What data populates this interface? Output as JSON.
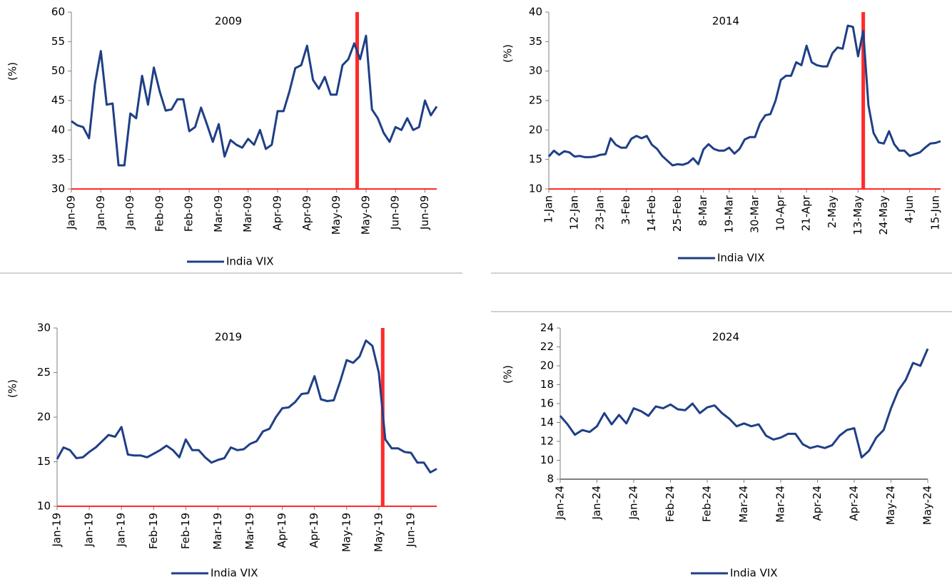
{
  "chart_data": [
    {
      "type": "line",
      "title": "2009",
      "ylabel": "(%)",
      "categories": [
        "Jan-09",
        null,
        null,
        null,
        null,
        "Jan-09",
        null,
        null,
        null,
        null,
        "Jan-09",
        null,
        null,
        null,
        null,
        "Feb-09",
        null,
        null,
        null,
        null,
        "Feb-09",
        null,
        null,
        null,
        null,
        "Mar-09",
        null,
        null,
        null,
        null,
        "Mar-09",
        null,
        null,
        null,
        null,
        "Apr-09",
        null,
        null,
        null,
        null,
        "Apr-09",
        null,
        null,
        null,
        null,
        "May-09",
        null,
        null,
        null,
        null,
        "May-09",
        null,
        null,
        null,
        null,
        "Jun-09",
        null,
        null,
        null,
        null,
        "Jun-09",
        null,
        null
      ],
      "series": [
        {
          "name": "India VIX",
          "color": "#1f3f86",
          "values": [
            41.5,
            40.8,
            40.5,
            38.6,
            47.8,
            53.4,
            44.3,
            44.5,
            34,
            34,
            42.8,
            42,
            49.2,
            44.3,
            50.6,
            46.5,
            43.3,
            43.5,
            45.2,
            45.2,
            39.8,
            40.5,
            43.8,
            41,
            38,
            41,
            35.5,
            38.3,
            37.5,
            37,
            38.5,
            37.5,
            40,
            36.8,
            37.5,
            43.2,
            43.2,
            46.5,
            50.5,
            51,
            54.3,
            48.5,
            47,
            49,
            46,
            46,
            51,
            52,
            54.7,
            52,
            56,
            43.5,
            42,
            39.5,
            38,
            40.5,
            40,
            42,
            40,
            40.5,
            45,
            42.5,
            44
          ]
        }
      ],
      "ylim": [
        30,
        60
      ],
      "yticks": [
        30,
        35,
        40,
        45,
        50,
        55,
        60
      ],
      "x_axis_color": "#ff2a2a",
      "vline": {
        "at": 48.5,
        "color": "#ff2a2a"
      }
    },
    {
      "type": "line",
      "title": "2014",
      "ylabel": "(%)",
      "categories": [
        "1-Jan",
        null,
        null,
        null,
        null,
        "12-Jan",
        null,
        null,
        null,
        null,
        "23-Jan",
        null,
        null,
        null,
        null,
        "3-Feb",
        null,
        null,
        null,
        null,
        "14-Feb",
        null,
        null,
        null,
        null,
        "25-Feb",
        null,
        null,
        null,
        null,
        "8-Mar",
        null,
        null,
        null,
        null,
        "19-Mar",
        null,
        null,
        null,
        null,
        "30-Mar",
        null,
        null,
        null,
        null,
        "10-Apr",
        null,
        null,
        null,
        null,
        "21-Apr",
        null,
        null,
        null,
        null,
        "2-May",
        null,
        null,
        null,
        null,
        "13-May",
        null,
        null,
        null,
        null,
        "24-May",
        null,
        null,
        null,
        null,
        "4-Jun",
        null,
        null,
        null,
        null,
        "15-Jun",
        null
      ],
      "series": [
        {
          "name": "India VIX",
          "color": "#1f3f86",
          "values": [
            15.5,
            16.5,
            15.8,
            16.4,
            16.2,
            15.5,
            15.6,
            15.4,
            15.4,
            15.5,
            15.8,
            15.9,
            18.6,
            17.5,
            17,
            17,
            18.5,
            19,
            18.6,
            19,
            17.5,
            16.8,
            15.6,
            14.8,
            14,
            14.2,
            14.1,
            14.4,
            15.2,
            14.2,
            16.7,
            17.6,
            16.8,
            16.5,
            16.5,
            17,
            16,
            16.8,
            18.4,
            18.8,
            18.8,
            21.2,
            22.5,
            22.7,
            25,
            28.5,
            29.2,
            29.2,
            31.5,
            31,
            34.3,
            31.5,
            31,
            30.8,
            30.8,
            33,
            34,
            33.8,
            37.7,
            37.5,
            32.5,
            36.8,
            24.2,
            19.5,
            17.9,
            17.7,
            19.8,
            17.6,
            16.5,
            16.5,
            15.6,
            15.9,
            16.2,
            17,
            17.7,
            17.8,
            18.1
          ]
        }
      ],
      "ylim": [
        10,
        40
      ],
      "yticks": [
        10,
        15,
        20,
        25,
        30,
        35,
        40
      ],
      "x_axis_color": "#ff2a2a",
      "vline": {
        "at": 61,
        "color": "#ff2a2a"
      }
    },
    {
      "type": "line",
      "title": "2019",
      "ylabel": "(%)",
      "categories": [
        "Jan-19",
        null,
        null,
        null,
        null,
        "Jan-19",
        null,
        null,
        null,
        null,
        "Jan-19",
        null,
        null,
        null,
        null,
        "Feb-19",
        null,
        null,
        null,
        null,
        "Feb-19",
        null,
        null,
        null,
        null,
        "Mar-19",
        null,
        null,
        null,
        null,
        "Mar-19",
        null,
        null,
        null,
        null,
        "Apr-19",
        null,
        null,
        null,
        null,
        "Apr-19",
        null,
        null,
        null,
        null,
        "May-19",
        null,
        null,
        null,
        null,
        "May-19",
        null,
        null,
        null,
        null,
        "Jun-19",
        null,
        null,
        null,
        null
      ],
      "series": [
        {
          "name": "India VIX",
          "color": "#1f3f86",
          "values": [
            15.3,
            16.6,
            16.3,
            15.4,
            15.5,
            16.1,
            16.6,
            17.3,
            18,
            17.8,
            18.9,
            15.8,
            15.7,
            15.7,
            15.5,
            15.9,
            16.3,
            16.8,
            16.3,
            15.5,
            17.5,
            16.3,
            16.3,
            15.5,
            14.9,
            15.2,
            15.4,
            16.6,
            16.3,
            16.4,
            17,
            17.3,
            18.4,
            18.7,
            20,
            21,
            21.1,
            21.7,
            22.6,
            22.7,
            24.6,
            22,
            21.8,
            21.9,
            24,
            26.4,
            26.1,
            26.8,
            28.6,
            28,
            25,
            17.5,
            16.5,
            16.5,
            16.1,
            16,
            14.9,
            14.9,
            13.8,
            14.2
          ]
        }
      ],
      "ylim": [
        10,
        30
      ],
      "yticks": [
        10,
        15,
        20,
        25,
        30
      ],
      "x_axis_color": "#ff2a2a",
      "vline": {
        "at": 50.6,
        "color": "#ff2a2a"
      }
    },
    {
      "type": "line",
      "title": "2024",
      "ylabel": "(%)",
      "categories": [
        "Jan-24",
        null,
        null,
        null,
        null,
        "Jan-24",
        null,
        null,
        null,
        null,
        "Jan-24",
        null,
        null,
        null,
        null,
        "Feb-24",
        null,
        null,
        null,
        null,
        "Feb-24",
        null,
        null,
        null,
        null,
        "Mar-24",
        null,
        null,
        null,
        null,
        "Mar-24",
        null,
        null,
        null,
        null,
        "Apr-24",
        null,
        null,
        null,
        null,
        "Apr-24",
        null,
        null,
        null,
        null,
        "May-24",
        null,
        null,
        null,
        null,
        "May-24"
      ],
      "series": [
        {
          "name": "India VIX",
          "color": "#1f3f86",
          "values": [
            14.7,
            13.8,
            12.7,
            13.2,
            13,
            13.6,
            15,
            13.8,
            14.8,
            13.9,
            15.5,
            15.2,
            14.7,
            15.7,
            15.5,
            15.9,
            15.4,
            15.3,
            16,
            15,
            15.6,
            15.8,
            15,
            14.4,
            13.6,
            13.9,
            13.6,
            13.8,
            12.6,
            12.2,
            12.4,
            12.8,
            12.8,
            11.7,
            11.3,
            11.5,
            11.3,
            11.6,
            12.6,
            13.2,
            13.4,
            10.3,
            11,
            12.4,
            13.2,
            15.5,
            17.4,
            18.5,
            20.3,
            20,
            21.8
          ]
        }
      ],
      "ylim": [
        8,
        24
      ],
      "yticks": [
        8,
        10,
        12,
        14,
        16,
        18,
        20,
        22,
        24
      ],
      "x_axis_color": "#7f7f7f"
    }
  ]
}
